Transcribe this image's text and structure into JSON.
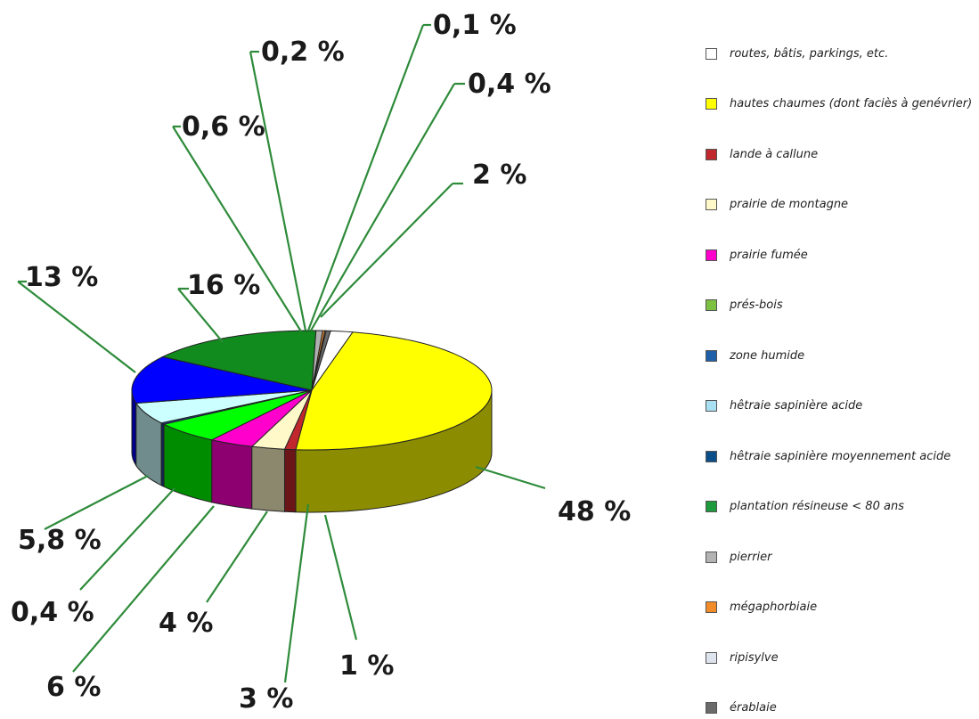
{
  "chart_data": {
    "type": "pie",
    "title": "",
    "slices": [
      {
        "label": "routes, bâtis, parkings, etc.",
        "value": 2,
        "display": "2 %",
        "color": "#ffffff"
      },
      {
        "label": "hautes chaumes (dont faciès à genévrier)",
        "value": 48,
        "display": "48 %",
        "color": "#ffff00"
      },
      {
        "label": "lande à callune",
        "value": 1,
        "display": "1 %",
        "color": "#c0282e"
      },
      {
        "label": "prairie de montagne",
        "value": 3,
        "display": "3 %",
        "color": "#fff8c8"
      },
      {
        "label": "prairie fumée",
        "value": 4,
        "display": "4 %",
        "color": "#ff00cc"
      },
      {
        "label": "prés-bois",
        "value": 6,
        "display": "6 %",
        "color": "#00ff00"
      },
      {
        "label": "zone humide",
        "value": 0.4,
        "display": "0,4 %",
        "color": "#1f3f9f"
      },
      {
        "label": "hêtraie sapinière acide",
        "value": 5.8,
        "display": "5,8 %",
        "color": "#ccffff"
      },
      {
        "label": "hêtraie sapinière moyennement acide",
        "value": 13,
        "display": "13 %",
        "color": "#0000ff"
      },
      {
        "label": "plantation résineuse < 80 ans",
        "value": 16,
        "display": "16 %",
        "color": "#118a1e"
      },
      {
        "label": "pierrier",
        "value": 0.6,
        "display": "0,6 %",
        "color": "#b0b0b0"
      },
      {
        "label": "mégaphorbiaie",
        "value": 0.2,
        "display": "0,2 %",
        "color": "#f28c28"
      },
      {
        "label": "ripisylve",
        "value": 0.1,
        "display": "0,1 %",
        "color": "#dde4ee"
      },
      {
        "label": "érablaie",
        "value": 0.4,
        "display": "0,4 %",
        "color": "#6a6a6a"
      }
    ],
    "legend_position": "right"
  },
  "legend": [
    {
      "label": "routes, bâtis, parkings, etc.",
      "color": "#ffffff"
    },
    {
      "label": "hautes chaumes (dont faciès à genévrier)",
      "color": "#ffff00"
    },
    {
      "label": "lande à callune",
      "color": "#c0282e"
    },
    {
      "label": "prairie de montagne",
      "color": "#fff8c8"
    },
    {
      "label": "prairie fumée",
      "color": "#ff00cc"
    },
    {
      "label": "prés-bois",
      "color": "#7dc142"
    },
    {
      "label": "zone humide",
      "color": "#1f5fa8"
    },
    {
      "label": "hêtraie sapinière acide",
      "color": "#a9dff2"
    },
    {
      "label": "hêtraie sapinière moyennement acide",
      "color": "#0b4f8a"
    },
    {
      "label": "plantation résineuse < 80 ans",
      "color": "#1e9a3c"
    },
    {
      "label": "pierrier",
      "color": "#b3b3b3"
    },
    {
      "label": "mégaphorbiaie",
      "color": "#f28c28"
    },
    {
      "label": "ripisylve",
      "color": "#dde4ee"
    },
    {
      "label": "érablaie",
      "color": "#6a6a6a"
    }
  ]
}
